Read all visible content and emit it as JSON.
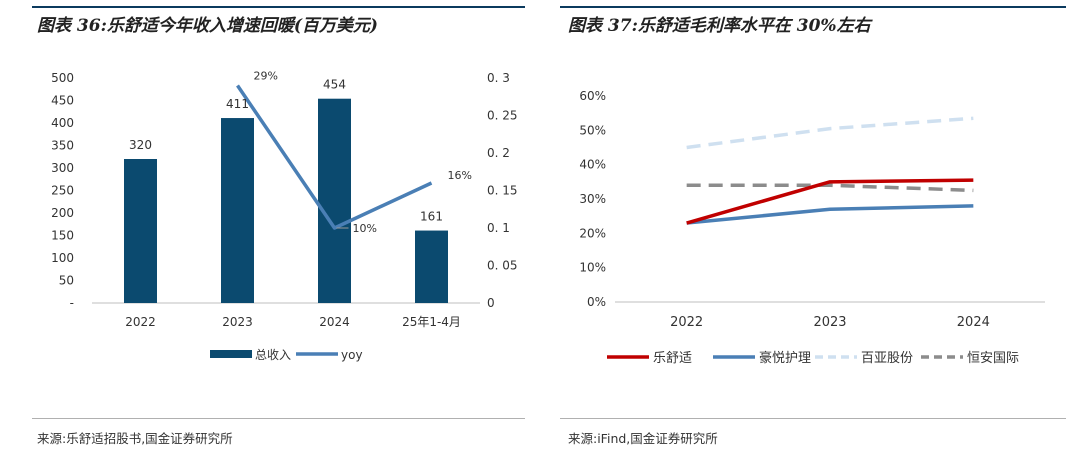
{
  "left": {
    "title": "图表 36:乐舒适今年收入增速回暖(百万美元)",
    "source": "来源:乐舒适招股书,国金证券研究所"
  },
  "right": {
    "title": "图表 37:乐舒适毛利率水平在 30%左右",
    "source": "来源:iFind,国金证券研究所"
  },
  "colors": {
    "bar": "#0b4a6f",
    "yoy": "#4a7fb5",
    "leshushi": "#c00000",
    "haoyue": "#4a7fb5",
    "baiya": "#cfe0f0",
    "hengan": "#8c8c8c",
    "rule": "#0b3a5e"
  },
  "chart_data": [
    {
      "type": "bar",
      "title": "图表 36:乐舒适今年收入增速回暖(百万美元)",
      "categories": [
        "2022",
        "2023",
        "2024",
        "25年1-4月"
      ],
      "series": [
        {
          "name": "总收入",
          "type": "bar",
          "axis": "left",
          "values": [
            320,
            411,
            454,
            161
          ]
        },
        {
          "name": "yoy",
          "type": "line",
          "axis": "right",
          "values": [
            null,
            0.29,
            0.1,
            0.16
          ]
        }
      ],
      "bar_labels": [
        "320",
        "411",
        "454",
        "161"
      ],
      "yoy_labels": [
        "",
        "29%",
        "10%",
        "16%"
      ],
      "left_axis": {
        "range": [
          0,
          500
        ],
        "ticks": [
          0,
          50,
          100,
          150,
          200,
          250,
          300,
          350,
          400,
          450,
          500
        ],
        "tick_labels": [
          "-",
          "50",
          "100",
          "150",
          "200",
          "250",
          "300",
          "350",
          "400",
          "450",
          "500"
        ]
      },
      "right_axis": {
        "range": [
          0,
          0.3
        ],
        "ticks": [
          0,
          0.05,
          0.1,
          0.15,
          0.2,
          0.25,
          0.3
        ],
        "tick_labels": [
          "0",
          "0. 05",
          "0. 1",
          "0. 15",
          "0. 2",
          "0. 25",
          "0. 3"
        ]
      },
      "legend": [
        "总收入",
        "yoy"
      ],
      "legend_position": "bottom"
    },
    {
      "type": "line",
      "title": "图表 37:乐舒适毛利率水平在 30%左右",
      "categories": [
        "2022",
        "2023",
        "2024"
      ],
      "series": [
        {
          "name": "乐舒适",
          "values": [
            0.23,
            0.35,
            0.355
          ],
          "style": "solid"
        },
        {
          "name": "豪悦护理",
          "values": [
            0.23,
            0.27,
            0.28
          ],
          "style": "solid"
        },
        {
          "name": "百亚股份",
          "values": [
            0.45,
            0.505,
            0.535
          ],
          "style": "dashed"
        },
        {
          "name": "恒安国际",
          "values": [
            0.34,
            0.34,
            0.325
          ],
          "style": "dashed"
        }
      ],
      "y_axis": {
        "range": [
          0,
          0.6
        ],
        "ticks": [
          0,
          0.1,
          0.2,
          0.3,
          0.4,
          0.5,
          0.6
        ],
        "tick_labels": [
          "0%",
          "10%",
          "20%",
          "30%",
          "40%",
          "50%",
          "60%"
        ]
      },
      "legend": [
        "乐舒适",
        "豪悦护理",
        "百亚股份",
        "恒安国际"
      ],
      "legend_position": "bottom"
    }
  ]
}
